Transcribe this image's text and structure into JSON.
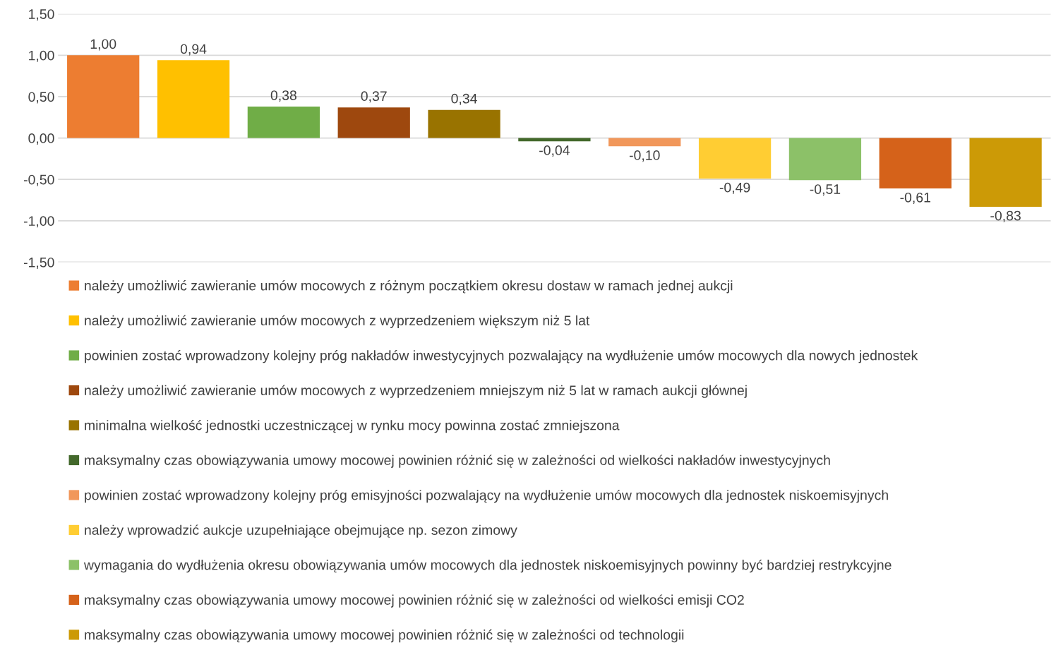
{
  "chart_data": {
    "type": "bar",
    "categories": [
      null,
      null,
      null,
      null,
      null,
      null,
      null,
      null,
      null,
      null,
      null
    ],
    "ylim": [
      -1.5,
      1.5
    ],
    "yticks": [
      {
        "value": -1.5,
        "label": "-1,50"
      },
      {
        "value": -1.0,
        "label": "-1,00"
      },
      {
        "value": -0.5,
        "label": "-0,50"
      },
      {
        "value": 0,
        "label": "0,00"
      },
      {
        "value": 0.5,
        "label": "0,50"
      },
      {
        "value": 1.0,
        "label": "1,00"
      },
      {
        "value": 1.5,
        "label": "1,50"
      }
    ],
    "grid": "y",
    "legend": "bottom",
    "tick_labels": "y",
    "series": [
      {
        "name": "należy umożliwić zawieranie umów mocowych z różnym początkiem okresu dostaw w ramach jednej aukcji",
        "color": "#ed7d31",
        "values": [
          1.0,
          null,
          null,
          null,
          null,
          null,
          null,
          null,
          null,
          null,
          null
        ],
        "value_labels": [
          "1,00",
          null,
          null,
          null,
          null,
          null,
          null,
          null,
          null,
          null,
          null
        ]
      },
      {
        "name": "należy umożliwić zawieranie umów mocowych z wyprzedzeniem większym niż 5 lat",
        "color": "#ffc000",
        "values": [
          null,
          0.94,
          null,
          null,
          null,
          null,
          null,
          null,
          null,
          null,
          null
        ],
        "value_labels": [
          null,
          "0,94",
          null,
          null,
          null,
          null,
          null,
          null,
          null,
          null,
          null
        ]
      },
      {
        "name": "powinien zostać wprowadzony kolejny próg nakładów inwestycyjnych pozwalający na wydłużenie umów mocowych dla nowych jednostek",
        "color": "#70ad47",
        "values": [
          null,
          null,
          0.38,
          null,
          null,
          null,
          null,
          null,
          null,
          null,
          null
        ],
        "value_labels": [
          null,
          null,
          "0,38",
          null,
          null,
          null,
          null,
          null,
          null,
          null,
          null
        ]
      },
      {
        "name": "należy umożliwić zawieranie umów mocowych z wyprzedzeniem mniejszym niż 5 lat w ramach aukcji głównej",
        "color": "#9e480e",
        "values": [
          null,
          null,
          null,
          0.37,
          null,
          null,
          null,
          null,
          null,
          null,
          null
        ],
        "value_labels": [
          null,
          null,
          null,
          "0,37",
          null,
          null,
          null,
          null,
          null,
          null,
          null
        ]
      },
      {
        "name": "minimalna wielkość jednostki uczestniczącej w rynku mocy powinna zostać zmniejszona",
        "color": "#997300",
        "values": [
          null,
          null,
          null,
          null,
          0.34,
          null,
          null,
          null,
          null,
          null,
          null
        ],
        "value_labels": [
          null,
          null,
          null,
          null,
          "0,34",
          null,
          null,
          null,
          null,
          null,
          null
        ]
      },
      {
        "name": "maksymalny czas obowiązywania umowy mocowej powinien różnić się w zależności od wielkości nakładów inwestycyjnych",
        "color": "#43682b",
        "values": [
          null,
          null,
          null,
          null,
          null,
          -0.04,
          null,
          null,
          null,
          null,
          null
        ],
        "value_labels": [
          null,
          null,
          null,
          null,
          null,
          "-0,04",
          null,
          null,
          null,
          null,
          null
        ]
      },
      {
        "name": "powinien zostać wprowadzony kolejny próg emisyjności pozwalający na wydłużenie umów mocowych dla jednostek niskoemisyjnych",
        "color": "#f1975a",
        "values": [
          null,
          null,
          null,
          null,
          null,
          null,
          -0.1,
          null,
          null,
          null,
          null
        ],
        "value_labels": [
          null,
          null,
          null,
          null,
          null,
          null,
          "-0,10",
          null,
          null,
          null,
          null
        ]
      },
      {
        "name": "należy wprowadzić aukcje uzupełniające obejmujące np. sezon zimowy",
        "color": "#ffcd33",
        "values": [
          null,
          null,
          null,
          null,
          null,
          null,
          null,
          -0.49,
          null,
          null,
          null
        ],
        "value_labels": [
          null,
          null,
          null,
          null,
          null,
          null,
          null,
          "-0,49",
          null,
          null,
          null
        ]
      },
      {
        "name": "wymagania do wydłużenia okresu obowiązywania umów mocowych dla jednostek niskoemisyjnych powinny być bardziej restrykcyjne",
        "color": "#8cc168",
        "values": [
          null,
          null,
          null,
          null,
          null,
          null,
          null,
          null,
          -0.51,
          null,
          null
        ],
        "value_labels": [
          null,
          null,
          null,
          null,
          null,
          null,
          null,
          null,
          "-0,51",
          null,
          null
        ]
      },
      {
        "name": "maksymalny czas obowiązywania umowy mocowej powinien różnić się w zależności od wielkości emisji CO2",
        "color": "#d5621a",
        "values": [
          null,
          null,
          null,
          null,
          null,
          null,
          null,
          null,
          null,
          -0.61,
          null
        ],
        "value_labels": [
          null,
          null,
          null,
          null,
          null,
          null,
          null,
          null,
          null,
          "-0,61",
          null
        ]
      },
      {
        "name": "maksymalny czas obowiązywania umowy mocowej powinien różnić się w zależności od technologii",
        "color": "#cc9a06",
        "values": [
          null,
          null,
          null,
          null,
          null,
          null,
          null,
          null,
          null,
          null,
          -0.83
        ],
        "value_labels": [
          null,
          null,
          null,
          null,
          null,
          null,
          null,
          null,
          null,
          null,
          "-0,83"
        ]
      }
    ]
  }
}
